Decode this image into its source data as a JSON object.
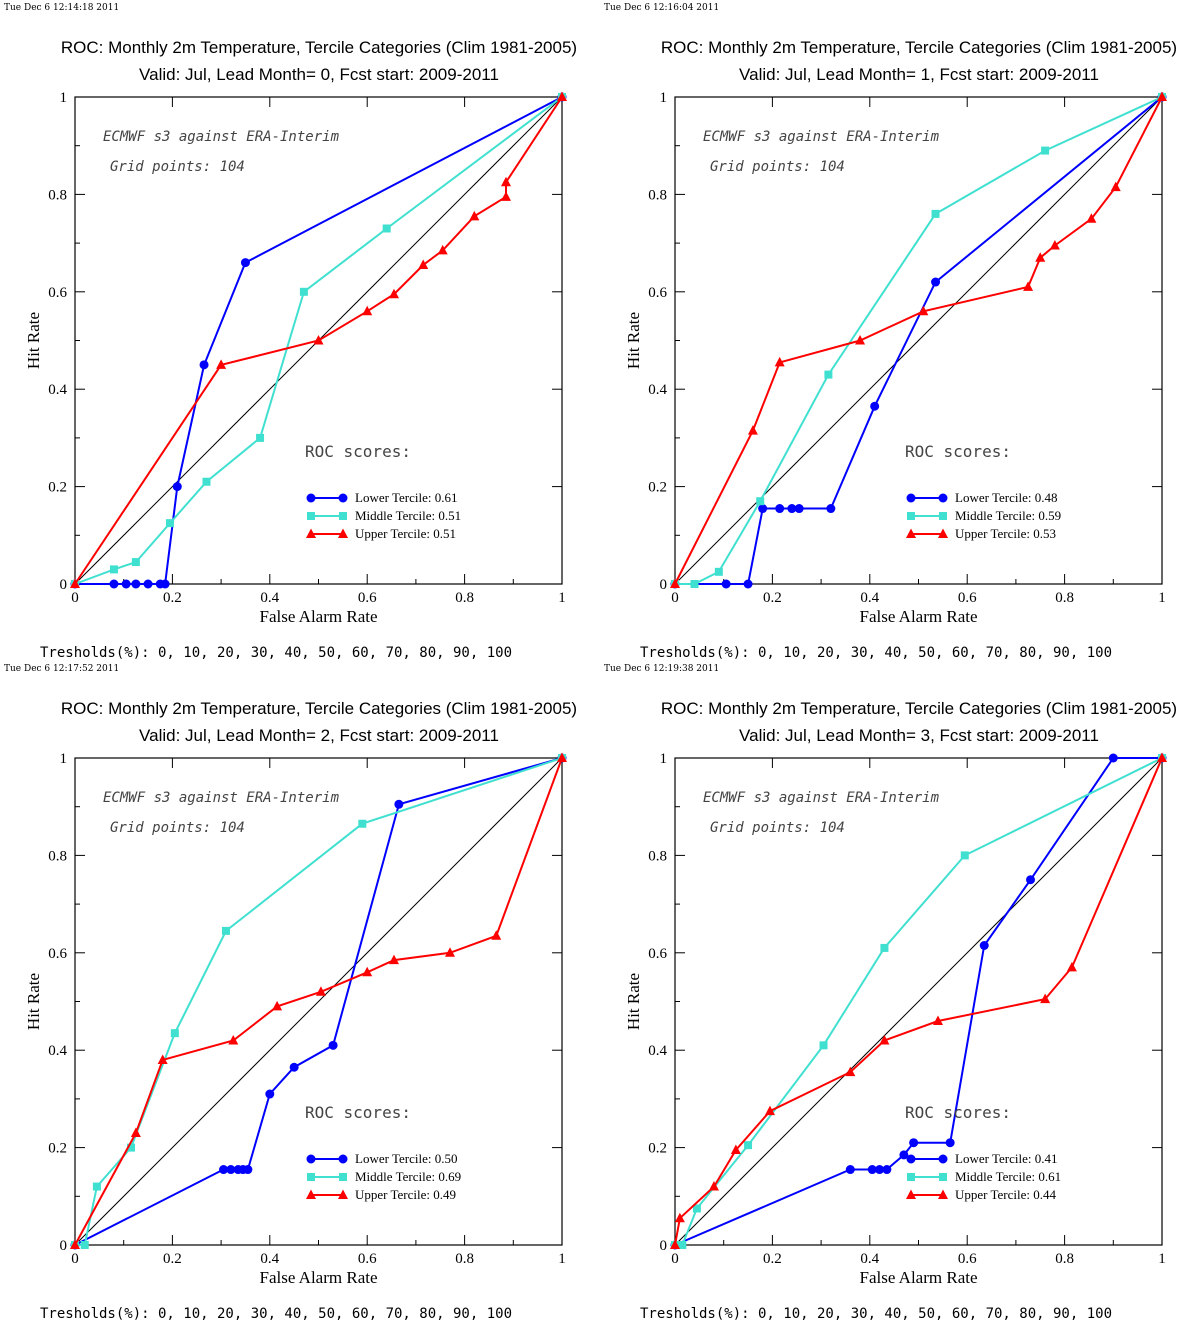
{
  "chart_data": [
    {
      "type": "line",
      "timestamp": "Tue Dec  6 12:14:18 2011",
      "title": "ROC: Monthly 2m Temperature, Tercile Categories (Clim 1981-2005)",
      "subtitle": "Valid: Jul, Lead Month= 0, Fcst start: 2009-2011",
      "xlabel": "False Alarm Rate",
      "ylabel": "Hit Rate",
      "xlim": [
        0,
        1
      ],
      "ylim": [
        0,
        1
      ],
      "xticks": [
        "0",
        "0.2",
        "0.4",
        "0.6",
        "0.8",
        "1"
      ],
      "yticks": [
        "0",
        "0.2",
        "0.4",
        "0.6",
        "0.8",
        "1"
      ],
      "annotations": [
        "ECMWF s3 against ERA-Interim",
        "Grid points:  104"
      ],
      "scores_heading": "ROC scores:",
      "thresholds_text": "Tresholds(%): 0, 10, 20, 30, 40, 50, 60, 70, 80, 90, 100",
      "legend_position": "lower-right",
      "series": [
        {
          "name": "Lower Tercile: 0.61",
          "color": "#0000ff",
          "marker": "circle",
          "points": [
            [
              0,
              0
            ],
            [
              0.08,
              0
            ],
            [
              0.105,
              0
            ],
            [
              0.125,
              0
            ],
            [
              0.15,
              0
            ],
            [
              0.175,
              0
            ],
            [
              0.185,
              0
            ],
            [
              0.21,
              0.2
            ],
            [
              0.265,
              0.45
            ],
            [
              0.35,
              0.66
            ],
            [
              1,
              1
            ]
          ]
        },
        {
          "name": "Middle Tercile: 0.51",
          "color": "#40e0d0",
          "marker": "square",
          "points": [
            [
              0,
              0
            ],
            [
              0.08,
              0.03
            ],
            [
              0.125,
              0.045
            ],
            [
              0.195,
              0.125
            ],
            [
              0.27,
              0.21
            ],
            [
              0.38,
              0.3
            ],
            [
              0.47,
              0.6
            ],
            [
              0.64,
              0.73
            ],
            [
              1,
              1
            ]
          ]
        },
        {
          "name": "Upper Tercile: 0.51",
          "color": "#ff0000",
          "marker": "triangle",
          "points": [
            [
              0,
              0
            ],
            [
              0.3,
              0.45
            ],
            [
              0.5,
              0.5
            ],
            [
              0.6,
              0.56
            ],
            [
              0.655,
              0.595
            ],
            [
              0.715,
              0.655
            ],
            [
              0.755,
              0.685
            ],
            [
              0.82,
              0.755
            ],
            [
              0.885,
              0.795
            ],
            [
              0.885,
              0.825
            ],
            [
              1,
              1
            ]
          ]
        }
      ]
    },
    {
      "type": "line",
      "timestamp": "Tue Dec  6 12:16:04 2011",
      "title": "ROC: Monthly 2m Temperature, Tercile Categories (Clim 1981-2005)",
      "subtitle": "Valid: Jul, Lead Month= 1, Fcst start: 2009-2011",
      "xlabel": "False Alarm Rate",
      "ylabel": "Hit Rate",
      "xlim": [
        0,
        1
      ],
      "ylim": [
        0,
        1
      ],
      "xticks": [
        "0",
        "0.2",
        "0.4",
        "0.6",
        "0.8",
        "1"
      ],
      "yticks": [
        "0",
        "0.2",
        "0.4",
        "0.6",
        "0.8",
        "1"
      ],
      "annotations": [
        "ECMWF s3 against ERA-Interim",
        "Grid points:  104"
      ],
      "scores_heading": "ROC scores:",
      "thresholds_text": "Tresholds(%): 0, 10, 20, 30, 40, 50, 60, 70, 80, 90, 100",
      "legend_position": "lower-right",
      "series": [
        {
          "name": "Lower Tercile: 0.48",
          "color": "#0000ff",
          "marker": "circle",
          "points": [
            [
              0,
              0
            ],
            [
              0.105,
              0
            ],
            [
              0.15,
              0
            ],
            [
              0.18,
              0.155
            ],
            [
              0.215,
              0.155
            ],
            [
              0.24,
              0.155
            ],
            [
              0.255,
              0.155
            ],
            [
              0.32,
              0.155
            ],
            [
              0.41,
              0.365
            ],
            [
              0.535,
              0.62
            ],
            [
              1,
              1
            ]
          ]
        },
        {
          "name": "Middle Tercile: 0.59",
          "color": "#40e0d0",
          "marker": "square",
          "points": [
            [
              0,
              0
            ],
            [
              0.04,
              0
            ],
            [
              0.09,
              0.025
            ],
            [
              0.175,
              0.17
            ],
            [
              0.315,
              0.43
            ],
            [
              0.535,
              0.76
            ],
            [
              0.76,
              0.89
            ],
            [
              1,
              1
            ]
          ]
        },
        {
          "name": "Upper Tercile: 0.53",
          "color": "#ff0000",
          "marker": "triangle",
          "points": [
            [
              0,
              0
            ],
            [
              0.16,
              0.315
            ],
            [
              0.215,
              0.455
            ],
            [
              0.38,
              0.5
            ],
            [
              0.51,
              0.56
            ],
            [
              0.725,
              0.61
            ],
            [
              0.75,
              0.67
            ],
            [
              0.78,
              0.695
            ],
            [
              0.855,
              0.75
            ],
            [
              0.905,
              0.815
            ],
            [
              1,
              1
            ]
          ]
        }
      ]
    },
    {
      "type": "line",
      "timestamp": "Tue Dec  6 12:17:52 2011",
      "title": "ROC: Monthly 2m Temperature, Tercile Categories (Clim 1981-2005)",
      "subtitle": "Valid: Jul, Lead Month= 2, Fcst start: 2009-2011",
      "xlabel": "False Alarm Rate",
      "ylabel": "Hit Rate",
      "xlim": [
        0,
        1
      ],
      "ylim": [
        0,
        1
      ],
      "xticks": [
        "0",
        "0.2",
        "0.4",
        "0.6",
        "0.8",
        "1"
      ],
      "yticks": [
        "0",
        "0.2",
        "0.4",
        "0.6",
        "0.8",
        "1"
      ],
      "annotations": [
        "ECMWF s3 against ERA-Interim",
        "Grid points:  104"
      ],
      "scores_heading": "ROC scores:",
      "thresholds_text": "Tresholds(%): 0, 10, 20, 30, 40, 50, 60, 70, 80, 90, 100",
      "legend_position": "lower-right",
      "series": [
        {
          "name": "Lower Tercile: 0.50",
          "color": "#0000ff",
          "marker": "circle",
          "points": [
            [
              0,
              0
            ],
            [
              0.305,
              0.155
            ],
            [
              0.32,
              0.155
            ],
            [
              0.335,
              0.155
            ],
            [
              0.345,
              0.155
            ],
            [
              0.355,
              0.155
            ],
            [
              0.4,
              0.31
            ],
            [
              0.45,
              0.365
            ],
            [
              0.53,
              0.41
            ],
            [
              0.665,
              0.905
            ],
            [
              1,
              1
            ]
          ]
        },
        {
          "name": "Middle Tercile: 0.69",
          "color": "#40e0d0",
          "marker": "square",
          "points": [
            [
              0,
              0
            ],
            [
              0.02,
              0
            ],
            [
              0.045,
              0.12
            ],
            [
              0.115,
              0.2
            ],
            [
              0.205,
              0.435
            ],
            [
              0.31,
              0.645
            ],
            [
              0.59,
              0.865
            ],
            [
              1,
              1
            ]
          ]
        },
        {
          "name": "Upper Tercile: 0.49",
          "color": "#ff0000",
          "marker": "triangle",
          "points": [
            [
              0,
              0
            ],
            [
              0.125,
              0.23
            ],
            [
              0.18,
              0.38
            ],
            [
              0.325,
              0.42
            ],
            [
              0.415,
              0.49
            ],
            [
              0.505,
              0.52
            ],
            [
              0.6,
              0.56
            ],
            [
              0.655,
              0.585
            ],
            [
              0.77,
              0.6
            ],
            [
              0.865,
              0.635
            ],
            [
              1,
              1
            ]
          ]
        }
      ]
    },
    {
      "type": "line",
      "timestamp": "Tue Dec  6 12:19:38 2011",
      "title": "ROC: Monthly 2m Temperature, Tercile Categories (Clim 1981-2005)",
      "subtitle": "Valid: Jul, Lead Month= 3, Fcst start: 2009-2011",
      "xlabel": "False Alarm Rate",
      "ylabel": "Hit Rate",
      "xlim": [
        0,
        1
      ],
      "ylim": [
        0,
        1
      ],
      "xticks": [
        "0",
        "0.2",
        "0.4",
        "0.6",
        "0.8",
        "1"
      ],
      "yticks": [
        "0",
        "0.2",
        "0.4",
        "0.6",
        "0.8",
        "1"
      ],
      "annotations": [
        "ECMWF s3 against ERA-Interim",
        "Grid points:  104"
      ],
      "scores_heading": "ROC scores:",
      "thresholds_text": "Tresholds(%): 0, 10, 20, 30, 40, 50, 60, 70, 80, 90, 100",
      "legend_position": "lower-right",
      "series": [
        {
          "name": "Lower Tercile: 0.41",
          "color": "#0000ff",
          "marker": "circle",
          "points": [
            [
              0,
              0
            ],
            [
              0.36,
              0.155
            ],
            [
              0.405,
              0.155
            ],
            [
              0.42,
              0.155
            ],
            [
              0.435,
              0.155
            ],
            [
              0.47,
              0.185
            ],
            [
              0.49,
              0.21
            ],
            [
              0.565,
              0.21
            ],
            [
              0.635,
              0.615
            ],
            [
              0.73,
              0.75
            ],
            [
              0.9,
              1
            ],
            [
              1,
              1
            ]
          ]
        },
        {
          "name": "Middle Tercile: 0.61",
          "color": "#40e0d0",
          "marker": "square",
          "points": [
            [
              0,
              0
            ],
            [
              0.015,
              0
            ],
            [
              0.045,
              0.075
            ],
            [
              0.15,
              0.205
            ],
            [
              0.305,
              0.41
            ],
            [
              0.43,
              0.61
            ],
            [
              0.595,
              0.8
            ],
            [
              1,
              1
            ]
          ]
        },
        {
          "name": "Upper Tercile: 0.44",
          "color": "#ff0000",
          "marker": "triangle",
          "points": [
            [
              0,
              0
            ],
            [
              0.01,
              0.055
            ],
            [
              0.08,
              0.12
            ],
            [
              0.125,
              0.195
            ],
            [
              0.195,
              0.275
            ],
            [
              0.36,
              0.355
            ],
            [
              0.43,
              0.42
            ],
            [
              0.54,
              0.46
            ],
            [
              0.76,
              0.505
            ],
            [
              0.815,
              0.57
            ],
            [
              1,
              1
            ]
          ]
        }
      ]
    }
  ]
}
